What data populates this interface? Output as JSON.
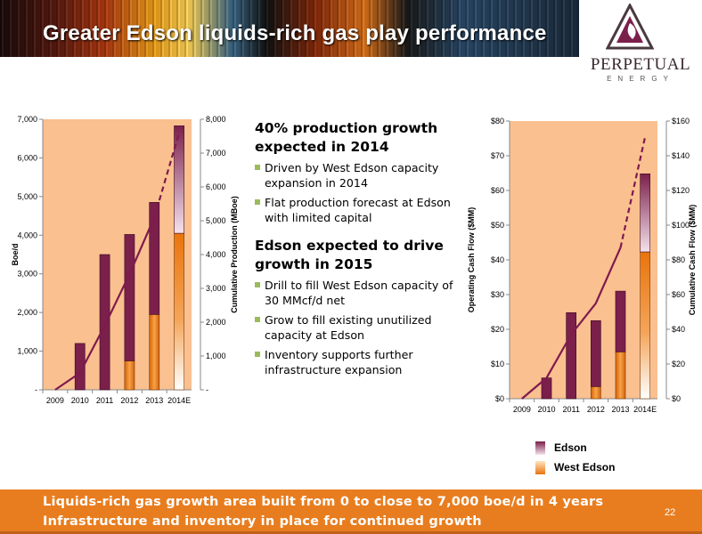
{
  "header": {
    "title": "Greater Edson liquids-rich gas play performance"
  },
  "logo": {
    "name": "PERPETUAL",
    "sub": "ENERGY"
  },
  "colors": {
    "plot_bg": "#fac090",
    "edson": "#7b1f4b",
    "edson_light": "#f4e2ec",
    "west_edson": "#e9740c",
    "west_edson_light": "#ffe4c4",
    "line": "#7f1a4e",
    "bullet_square": "#9bbb59",
    "footer": "#e87d1f"
  },
  "bullets": {
    "heading1": "40% production growth expected in 2014",
    "item1": "Driven by West Edson capacity expansion in 2014",
    "item2": "Flat production forecast at Edson with limited capital",
    "heading2": "Edson expected to drive growth in 2015",
    "item3": "Drill to fill West Edson capacity of 30 MMcf/d net",
    "item4": "Grow to fill existing unutilized capacity at Edson",
    "item5": "Inventory supports further infrastructure expansion"
  },
  "legend": {
    "edson": "Edson",
    "west_edson": "West Edson"
  },
  "footer": {
    "line1": "Liquids-rich gas growth area built from 0 to close to 7,000 boe/d in 4 years",
    "line2": "Infrastructure and inventory in place for continued growth",
    "page": "22"
  },
  "chart_data": [
    {
      "type": "bar",
      "stacked": true,
      "categories": [
        "2009",
        "2010",
        "2011",
        "2012",
        "2013",
        "2014E"
      ],
      "series": [
        {
          "name": "West Edson",
          "values": [
            0,
            0,
            0,
            750,
            1950,
            4050
          ]
        },
        {
          "name": "Edson",
          "values": [
            0,
            1200,
            3500,
            3270,
            2900,
            2780
          ]
        }
      ],
      "line_series": {
        "values": [
          0,
          500,
          1900,
          3420,
          5100,
          7600
        ],
        "dashed_from_index": 4
      },
      "ylabel": "Boe/d",
      "y2label": "Cumulative Production (MBoe)",
      "ylim": [
        0,
        7000
      ],
      "y2lim": [
        0,
        8000
      ],
      "yticks": [
        "-",
        "1,000",
        "2,000",
        "3,000",
        "4,000",
        "5,000",
        "6,000",
        "7,000"
      ],
      "y2ticks": [
        "-",
        "1,000",
        "2,000",
        "3,000",
        "4,000",
        "5,000",
        "6,000",
        "7,000",
        "8,000"
      ],
      "grid": false
    },
    {
      "type": "bar",
      "stacked": true,
      "categories": [
        "2009",
        "2010",
        "2011",
        "2012",
        "2013",
        "2014E"
      ],
      "series": [
        {
          "name": "West Edson",
          "values": [
            0,
            0,
            0,
            3.5,
            13.5,
            42.3
          ]
        },
        {
          "name": "Edson",
          "values": [
            0,
            6,
            24.8,
            19,
            17.5,
            22.5
          ]
        }
      ],
      "line_series": {
        "values": [
          0,
          12,
          37,
          55,
          87,
          151
        ],
        "dashed_from_index": 4
      },
      "ylabel": "Operating Cash Flow ($MM)",
      "y2label": "Cumulative Cash Flow ($MM)",
      "ylim": [
        0,
        80
      ],
      "y2lim": [
        0,
        160
      ],
      "yticks": [
        "$0",
        "$10",
        "$20",
        "$30",
        "$40",
        "$50",
        "$60",
        "$70",
        "$80"
      ],
      "y2ticks": [
        "$0",
        "$20",
        "$40",
        "$60",
        "$80",
        "$100",
        "$120",
        "$140",
        "$160"
      ],
      "grid": false
    }
  ]
}
